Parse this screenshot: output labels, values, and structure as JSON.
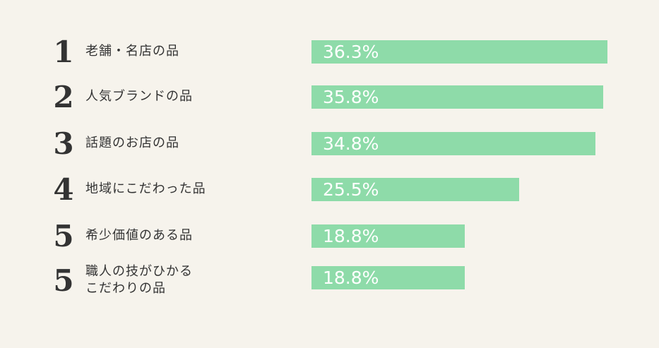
{
  "chart_data": {
    "type": "bar",
    "orientation": "horizontal",
    "bar_color": "#8edba9",
    "background": "#f6f3ec",
    "ranks": [
      "1",
      "2",
      "3",
      "4",
      "5",
      "5"
    ],
    "categories": [
      "老舗・名店の品",
      "人気ブランドの品",
      "話題のお店の品",
      "地域にこだわった品",
      "希少価値のある品",
      "職人の技がひかる\nこだわりの品"
    ],
    "values": [
      36.3,
      35.8,
      34.8,
      25.5,
      18.8,
      18.8
    ],
    "value_labels": [
      "36.3%",
      "35.8%",
      "34.8%",
      "25.5%",
      "18.8%",
      "18.8%"
    ],
    "unit": "%",
    "xlim": [
      0,
      36.3
    ]
  }
}
